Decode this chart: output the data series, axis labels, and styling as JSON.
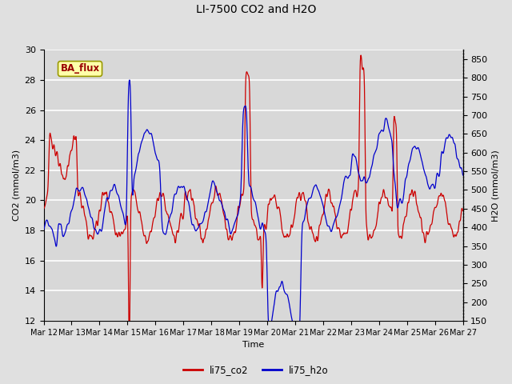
{
  "title": "LI-7500 CO2 and H2O",
  "xlabel": "Time",
  "ylabel_left": "CO2 (mmol/m3)",
  "ylabel_right": "H2O (mmol/m3)",
  "ylim_left": [
    12,
    30
  ],
  "ylim_right": [
    150,
    875
  ],
  "yticks_left": [
    12,
    14,
    16,
    18,
    20,
    22,
    24,
    26,
    28,
    30
  ],
  "yticks_right": [
    150,
    200,
    250,
    300,
    350,
    400,
    450,
    500,
    550,
    600,
    650,
    700,
    750,
    800,
    850
  ],
  "xtick_labels": [
    "Mar 12",
    "Mar 13",
    "Mar 14",
    "Mar 15",
    "Mar 16",
    "Mar 17",
    "Mar 18",
    "Mar 19",
    "Mar 20",
    "Mar 21",
    "Mar 22",
    "Mar 23",
    "Mar 24",
    "Mar 25",
    "Mar 26",
    "Mar 27"
  ],
  "color_co2": "#cc0000",
  "color_h2o": "#0000cc",
  "background_color": "#e0e0e0",
  "plot_bg_color": "#d8d8d8",
  "grid_color": "#ffffff",
  "annotation_text": "BA_flux",
  "annotation_bg": "#ffffaa",
  "annotation_border": "#999900"
}
